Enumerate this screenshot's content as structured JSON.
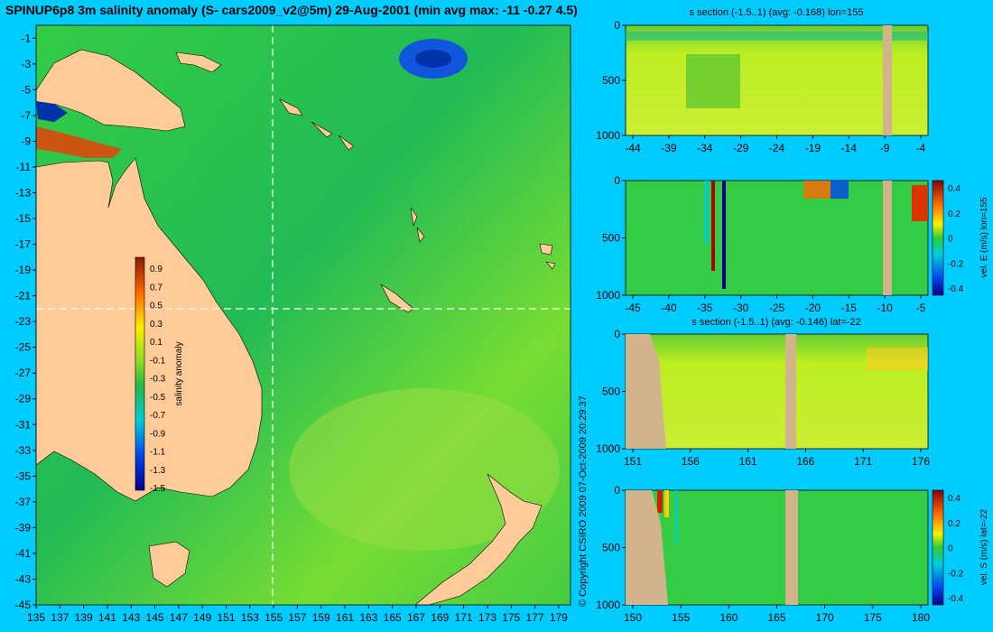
{
  "title": "SPINUP6p8 3m salinity anomaly (S- cars2009_v2@5m) 29-Aug-2001 (min avg max: -11 -0.27 4.5)",
  "copyright": "© Copyright CSIRO 2009   07-Oct-2009 20:29:37",
  "colors": {
    "background": "#00ccff",
    "land": "#ffcc99",
    "seabed": "#d2b48c",
    "ocean_mid": "#33cc33"
  },
  "chart_data": [
    {
      "type": "heatmap",
      "name": "map",
      "title": "SPINUP6p8 3m salinity anomaly (S- cars2009_v2@5m) 29-Aug-2001 (min avg max: -11 -0.27 4.5)",
      "xlim": [
        135,
        180
      ],
      "ylim": [
        -45,
        0
      ],
      "xticks": [
        135,
        137,
        139,
        141,
        143,
        145,
        147,
        149,
        151,
        153,
        155,
        157,
        159,
        161,
        163,
        165,
        167,
        169,
        171,
        173,
        175,
        177,
        179
      ],
      "yticks": [
        -1,
        -3,
        -5,
        -7,
        -9,
        -11,
        -13,
        -15,
        -17,
        -19,
        -21,
        -23,
        -25,
        -27,
        -29,
        -31,
        -33,
        -35,
        -37,
        -39,
        -41,
        -43,
        -45
      ],
      "section_lines": {
        "lon": 155,
        "lat": -22
      },
      "colorbar": {
        "label": "salinity anomaly",
        "ticks": [
          "0.9",
          "0.7",
          "0.5",
          "0.3",
          "0.1",
          "-0.1",
          "-0.3",
          "-0.5",
          "-0.7",
          "-0.9",
          "-1.1",
          "-1.3",
          "-1.5"
        ],
        "range": [
          -1.5,
          0.9
        ]
      }
    },
    {
      "type": "heatmap",
      "name": "s-section-lon155",
      "title": "s section (-1.5..1) (avg: -0.168) lon=155",
      "xticks": [
        "-44",
        "-39",
        "-34",
        "-29",
        "-24",
        "-19",
        "-14",
        "-9",
        "-4"
      ],
      "yticks": [
        "0",
        "500",
        "1000"
      ]
    },
    {
      "type": "heatmap",
      "name": "vel-e-lon155",
      "xticks": [
        "-45",
        "-40",
        "-35",
        "-30",
        "-25",
        "-20",
        "-15",
        "-10",
        "-5"
      ],
      "yticks": [
        "0",
        "500",
        "1000"
      ],
      "colorbar": {
        "label": "vel. E (m/s) lon=155",
        "ticks": [
          "0.4",
          "0.2",
          "0",
          "-0.2",
          "-0.4"
        ]
      }
    },
    {
      "type": "heatmap",
      "name": "s-section-lat22",
      "title": "s section (-1.5..1) (avg: -0.146) lat=-22",
      "xticks": [
        "151",
        "156",
        "161",
        "166",
        "171",
        "176"
      ],
      "yticks": [
        "0",
        "500",
        "1000"
      ]
    },
    {
      "type": "heatmap",
      "name": "vel-s-lat22",
      "xticks": [
        "150",
        "155",
        "160",
        "165",
        "170",
        "175",
        "180"
      ],
      "yticks": [
        "0",
        "500",
        "1000"
      ],
      "colorbar": {
        "label": "vel. S (m/s) lat=-22",
        "ticks": [
          "0.4",
          "0.2",
          "0",
          "-0.2",
          "-0.4"
        ]
      }
    }
  ]
}
